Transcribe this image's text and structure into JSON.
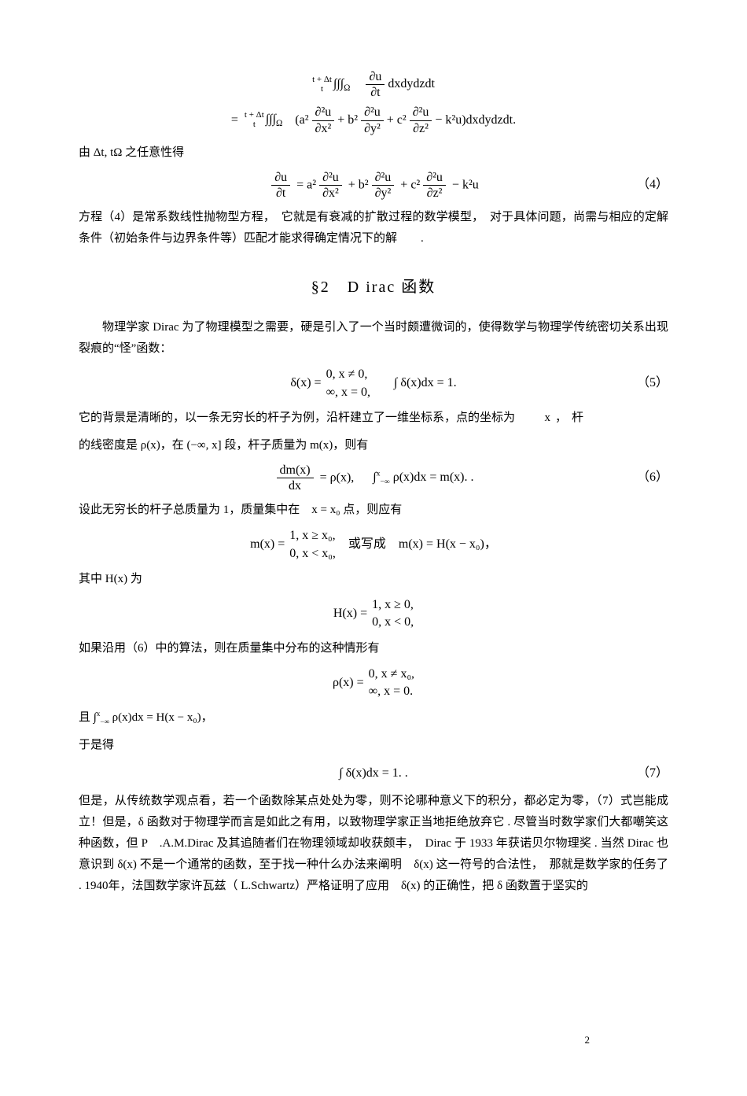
{
  "eq_top1": "∂u/∂t dxdydzdt",
  "eq_top1_lims": {
    "top": "t + Δt",
    "bot": "t"
  },
  "eq_top2_pre": "=",
  "eq_top2_lims": {
    "top": "t + Δt",
    "bot": "t"
  },
  "eq_top2_body": "(a² ∂²u/∂x² + b² ∂²u/∂y² + c² ∂²u/∂z² − k²u) dxdydzdt.",
  "line_arb": "由 Δt, tΩ 之任意性得",
  "eq4_body": "∂u/∂t = a² ∂²u/∂x² + b² ∂²u/∂y² + c² ∂²u/∂z² − k²u",
  "eq4_num": "（4）",
  "para_eq4": "方程（4）是常系数线性抛物型方程，　它就是有衰减的扩散过程的数学模型，　对于具体问题，尚需与相应的定解条件（初始条件与边界条件等）匹配才能求得确定情况下的解　　.",
  "section": "§2　D irac 函数",
  "para_intro": "物理学家 Dirac 为了物理模型之需要，硬是引入了一个当时颇遭微词的，使得数学与物理学传统密切关系出现裂痕的“怪”函数：",
  "eq5_lhs": "δ(x) =",
  "eq5_case1": "0, x ≠ 0,",
  "eq5_case2": "∞, x = 0,",
  "eq5_int": "∫ δ(x)dx = 1.",
  "eq5_num": "（5）",
  "para_bg1": "它的背景是清晰的，以一条无穷长的杆子为例，沿杆建立了一维坐标系，点的坐标为",
  "para_bg1_tail": "x，杆",
  "para_bg2": "的线密度是 ρ(x)，在 (−∞, x] 段，杆子质量为 m(x)，则有",
  "eq6_a": "dm(x)/dx = ρ(x),",
  "eq6_b": "∫₋∞ˣ ρ(x)dx = m(x). .",
  "eq6_num": "（6）",
  "para_mass": "设此无穷长的杆子总质量为 1，质量集中在　x = x₀ 点，则应有",
  "eq_mx_lhs": "m(x) =",
  "eq_mx_c1": "1, x ≥ x₀,",
  "eq_mx_c2": "0, x < x₀,",
  "eq_mx_mid": "或写成",
  "eq_mx_rhs": "m(x) = H(x − x₀)，",
  "para_H": "其中 H(x) 为",
  "eq_H_lhs": "H(x) =",
  "eq_H_c1": "1, x ≥ 0,",
  "eq_H_c2": "0, x < 0,",
  "para_algo": "如果沿用（6）中的算法，则在质量集中分布的这种情形有",
  "eq_rho_lhs": "ρ(x) =",
  "eq_rho_c1": "0, x ≠ x₀,",
  "eq_rho_c2": "∞, x = 0.",
  "para_and": "且 ∫₋∞ˣ ρ(x)dx = H(x − x₀)，",
  "para_thus": "于是得",
  "eq7_body": "∫ δ(x)dx = 1. .",
  "eq7_num": "（7）",
  "para_long": "但是，从传统数学观点看，若一个函数除某点处处为零，则不论哪种意义下的积分，都必定为零，（7）式岂能成立！但是，δ 函数对于物理学而言是如此之有用，以致物理学家正当地拒绝放弃它 . 尽管当时数学家们大都嘲笑这种函数，但 P　.A.M.Dirac 及其追随者们在物理领域却收获颇丰，　Dirac 于 1933 年获诺贝尔物理奖 . 当然 Dirac 也意识到 δ(x) 不是一个通常的函数，至于找一种什么办法来阐明　δ(x) 这一符号的合法性，　那就是数学家的任务了 . 1940年，法国数学家许瓦兹（ L.Schwartz）严格证明了应用　δ(x) 的正确性，把 δ 函数置于坚实的",
  "page_num": "2"
}
